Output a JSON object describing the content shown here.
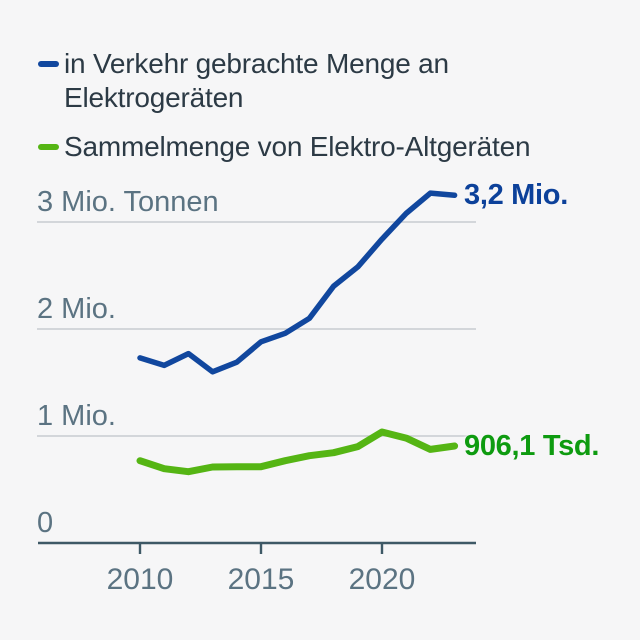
{
  "background_color": "#f6f6f7",
  "legend": {
    "items": [
      {
        "id": "in-verkehr",
        "color": "#11479e",
        "lines": [
          "in Verkehr gebrachte Menge an",
          "Elektrogeräten"
        ]
      },
      {
        "id": "sammelmenge",
        "color": "#55b514",
        "lines": [
          "Sammelmenge von Elektro-Altgeräten"
        ]
      }
    ]
  },
  "chart_data": {
    "type": "line",
    "x": [
      2010,
      2011,
      2012,
      2013,
      2014,
      2015,
      2016,
      2017,
      2018,
      2019,
      2020,
      2021,
      2022,
      2023
    ],
    "series": [
      {
        "name": "in Verkehr gebrachte Menge an Elektrogeräten",
        "color": "#11479e",
        "unit": "Mio. Tonnen",
        "values_mio_tonnen": [
          1.73,
          1.66,
          1.77,
          1.6,
          1.69,
          1.88,
          1.96,
          2.1,
          2.4,
          2.58,
          2.84,
          3.08,
          3.27,
          3.25
        ],
        "end_label": "3,2 Mio.",
        "end_label_color": "#0c419a",
        "line_width": 5.5
      },
      {
        "name": "Sammelmenge von Elektro-Altgeräten",
        "color": "#55b514",
        "unit": "Mio. Tonnen (beschriftet in Tsd.)",
        "values_mio_tonnen": [
          0.769,
          0.694,
          0.666,
          0.71,
          0.713,
          0.713,
          0.769,
          0.816,
          0.844,
          0.901,
          1.037,
          0.98,
          0.875,
          0.9061
        ],
        "end_label": "906,1 Tsd.",
        "end_label_color": "#0e9b10",
        "line_width": 7
      }
    ],
    "y_axis": {
      "unit": "Mio. Tonnen",
      "ticks": [
        {
          "value": 3,
          "label": "3 Mio. Tonnen"
        },
        {
          "value": 2,
          "label": "2 Mio."
        },
        {
          "value": 1,
          "label": "1 Mio."
        },
        {
          "value": 0,
          "label": "0"
        }
      ]
    },
    "x_axis": {
      "ticks": [
        {
          "value": 2010,
          "label": "2010"
        },
        {
          "value": 2015,
          "label": "2015"
        },
        {
          "value": 2020,
          "label": "2020"
        }
      ]
    },
    "xlim": [
      2010,
      2023
    ],
    "ylim": [
      0,
      3.4
    ],
    "grid": "horizontal",
    "legend_position": "top-left",
    "colors": {
      "grid_line": "#c7ccd1",
      "axis_line": "#3e5966",
      "axis_text": "#5b7382",
      "legend_text": "#2c3a45"
    }
  }
}
